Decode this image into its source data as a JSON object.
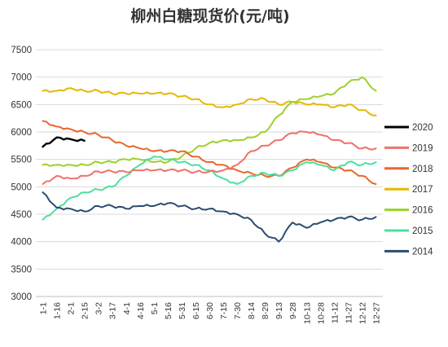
{
  "chart_data": {
    "type": "line",
    "title": "柳州白糖现货价(元/吨)",
    "xlabel": "",
    "ylabel": "",
    "ylim": [
      3000,
      7500
    ],
    "yticks": [
      3000,
      3500,
      4000,
      4500,
      5000,
      5500,
      6000,
      6500,
      7000,
      7500
    ],
    "categories": [
      "1-1",
      "1-16",
      "2-1",
      "2-15",
      "3-2",
      "3-17",
      "4-1",
      "4-16",
      "5-1",
      "5-16",
      "5-31",
      "6-15",
      "6-30",
      "7-15",
      "7-30",
      "8-14",
      "8-29",
      "9-13",
      "9-28",
      "10-13",
      "10-28",
      "11-12",
      "11-27",
      "12-12",
      "12-27"
    ],
    "grid": "horizontal",
    "legend_position": "right",
    "series": [
      {
        "name": "2020",
        "color": "#000000",
        "values": [
          5730,
          5900,
          5870,
          5840,
          null,
          null,
          null,
          null,
          null,
          null,
          null,
          null,
          null,
          null,
          null,
          null,
          null,
          null,
          null,
          null,
          null,
          null,
          null,
          null,
          null
        ]
      },
      {
        "name": "2019",
        "color": "#f0706a",
        "values": [
          5050,
          5200,
          5150,
          5200,
          5280,
          5280,
          5270,
          5300,
          5300,
          5300,
          5300,
          5270,
          5280,
          5300,
          5400,
          5650,
          5750,
          5850,
          5980,
          6000,
          5950,
          5850,
          5800,
          5700,
          5700
        ]
      },
      {
        "name": "2018",
        "color": "#e8662d",
        "values": [
          6200,
          6100,
          6050,
          6000,
          5950,
          5850,
          5750,
          5700,
          5650,
          5650,
          5650,
          5550,
          5450,
          5400,
          5300,
          5250,
          5200,
          5200,
          5350,
          5500,
          5450,
          5350,
          5300,
          5200,
          5050
        ]
      },
      {
        "name": "2017",
        "color": "#e6b800",
        "values": [
          6750,
          6750,
          6800,
          6750,
          6750,
          6700,
          6700,
          6700,
          6700,
          6700,
          6650,
          6600,
          6500,
          6450,
          6500,
          6600,
          6600,
          6500,
          6550,
          6500,
          6500,
          6450,
          6500,
          6400,
          6300
        ]
      },
      {
        "name": "2016",
        "color": "#9cd12a",
        "values": [
          5400,
          5400,
          5400,
          5400,
          5450,
          5450,
          5500,
          5500,
          5450,
          5450,
          5550,
          5700,
          5800,
          5850,
          5850,
          5900,
          6000,
          6300,
          6550,
          6600,
          6650,
          6700,
          6900,
          7000,
          6750
        ]
      },
      {
        "name": "2015",
        "color": "#4ddf9d",
        "values": [
          4400,
          4600,
          4800,
          4900,
          4950,
          5000,
          5200,
          5400,
          5550,
          5500,
          5450,
          5400,
          5300,
          5150,
          5050,
          5200,
          5250,
          5200,
          5300,
          5450,
          5400,
          5300,
          5450,
          5400,
          5450
        ]
      },
      {
        "name": "2014",
        "color": "#2c4b72",
        "values": [
          4900,
          4620,
          4600,
          4550,
          4650,
          4650,
          4600,
          4650,
          4650,
          4700,
          4650,
          4600,
          4600,
          4550,
          4500,
          4400,
          4150,
          4000,
          4350,
          4250,
          4350,
          4400,
          4450,
          4400,
          4450
        ]
      }
    ]
  }
}
